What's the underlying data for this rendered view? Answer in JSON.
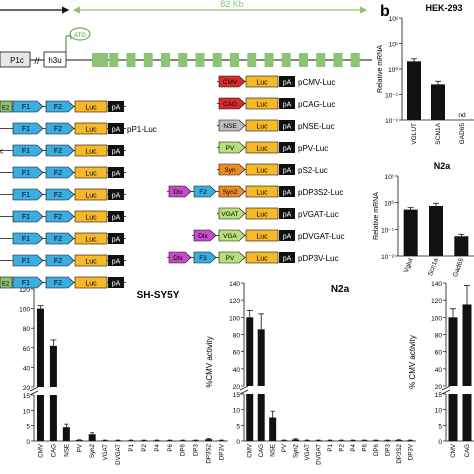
{
  "colors": {
    "green": "#8cc474",
    "green_dark": "#4e9a3a",
    "luc": "#f6b929",
    "blue": "#3aaee0",
    "red": "#d82c2c",
    "grey": "#bdbdbd",
    "lime": "#b8e07a",
    "orange": "#f08a24",
    "magenta": "#c54bc8"
  },
  "gene_map": {
    "scale_label": "82 Kb",
    "p1c_label": "P1c",
    "h3u_label": "h3u",
    "atg_label": "ATG",
    "exon_count": 16
  },
  "left_constructs": [
    {
      "tail": "E2",
      "boxes": [
        "F1",
        "F2"
      ],
      "luc": "Luc",
      "pa": "pA",
      "label": ""
    },
    {
      "tail": "",
      "boxes": [
        "F1",
        "F2"
      ],
      "luc": "Luc",
      "pa": "pA",
      "label": "pP1-Luc"
    },
    {
      "tail": "c",
      "boxes": [
        "F1",
        "F2"
      ],
      "luc": "Luc",
      "pa": "pA",
      "label": ""
    },
    {
      "tail": "",
      "boxes": [
        "F1",
        "F2"
      ],
      "luc": "Luc",
      "pa": "pA",
      "label": ""
    },
    {
      "tail": "",
      "boxes": [
        "F1",
        "F2"
      ],
      "luc": "Luc",
      "pa": "pA",
      "label": ""
    },
    {
      "tail": "",
      "boxes": [
        "F1",
        "F2"
      ],
      "luc": "Luc",
      "pa": "pA",
      "label": ""
    },
    {
      "tail": "",
      "boxes": [
        "F1",
        "F2"
      ],
      "luc": "Luc",
      "pa": "pA",
      "label": ""
    },
    {
      "tail": "",
      "boxes": [
        "F1",
        "F2"
      ],
      "luc": "Luc",
      "pa": "pA",
      "label": ""
    },
    {
      "tail": "E2",
      "boxes": [
        "F1",
        "F2"
      ],
      "luc": "Luc",
      "pa": "pA",
      "label": ""
    }
  ],
  "right_constructs": [
    {
      "promoter": "CMV",
      "color": "red",
      "extra": [],
      "label": "pCMV-Luc"
    },
    {
      "promoter": "CAG",
      "color": "red",
      "extra": [],
      "label": "pCAG-Luc"
    },
    {
      "promoter": "NSE",
      "color": "grey",
      "extra": [],
      "label": "pNSE-Luc"
    },
    {
      "promoter": "PV",
      "color": "lime",
      "extra": [],
      "label": "pPV-Luc"
    },
    {
      "promoter": "Syn",
      "color": "orange",
      "extra": [],
      "label": "pS2-Luc"
    },
    {
      "promoter": "Syn2",
      "color": "orange",
      "extra": [
        "Dlx",
        "F2"
      ],
      "label": "pDP3S2-Luc"
    },
    {
      "promoter": "VGAT",
      "color": "lime",
      "extra": [],
      "label": "pVGAT-Luc"
    },
    {
      "promoter": "VGA",
      "color": "lime",
      "extra": [
        "Dlx"
      ],
      "label": "pDVGAT-Luc"
    },
    {
      "promoter": "PV",
      "color": "lime",
      "extra": [
        "Dlx",
        "F3"
      ],
      "label": "pDP3V-Luc"
    }
  ],
  "panel_b_label": "b",
  "chart_data": [
    {
      "type": "bar",
      "title": "HEK-293",
      "ylabel": "Relative mRNA",
      "scale": "log",
      "yticks": [
        "10²",
        "10¹",
        "10⁰",
        "10⁻¹",
        "10⁻²"
      ],
      "categories": [
        "VGLUT",
        "SCN1A",
        "GAD65"
      ],
      "values": [
        2.0,
        0.25,
        null
      ],
      "errors": [
        0.5,
        0.08,
        null
      ],
      "annotations": [
        "",
        "",
        "nd"
      ]
    },
    {
      "type": "bar",
      "title": "N2a",
      "ylabel": "Relative mRNA",
      "scale": "log",
      "yticks": [
        "10¹",
        "10⁰",
        "10⁻¹",
        "10⁻²"
      ],
      "categories": [
        "Vglut",
        "Scn1a",
        "Gad65"
      ],
      "values": [
        0.55,
        0.75,
        0.055
      ],
      "errors": [
        0.1,
        0.2,
        0.01
      ]
    },
    {
      "type": "bar",
      "title": "SH-SY5Y",
      "ylabel": "",
      "yticks_upper": [
        "120",
        "100",
        "80",
        "60",
        "40",
        "20"
      ],
      "yticks_lower": [
        "15",
        "10",
        "5",
        "0"
      ],
      "categories": [
        "CMV",
        "CAG",
        "NSE",
        "PV",
        "Syn2",
        "VGAT",
        "DVGAT",
        "P1",
        "P2",
        "P4",
        "P6",
        "DP6",
        "DP3",
        "DP3S2",
        "DP3V"
      ],
      "values": [
        100,
        62,
        4.5,
        0.3,
        2.2,
        0.2,
        0.2,
        0.2,
        0.2,
        0.2,
        0.2,
        0.2,
        0.2,
        0.6,
        0.2
      ],
      "errors": [
        3,
        6,
        1,
        0.1,
        0.5,
        0.1,
        0.1,
        0.1,
        0.1,
        0.1,
        0.1,
        0.1,
        0.1,
        0.2,
        0.1
      ]
    },
    {
      "type": "bar",
      "title": "N2a",
      "ylabel": "%CMV activity",
      "yticks_upper": [
        "140",
        "120",
        "100",
        "80",
        "60",
        "40",
        "20"
      ],
      "yticks_lower": [
        "15",
        "10",
        "5",
        "0"
      ],
      "categories": [
        "CMV",
        "CAG",
        "NSE",
        "PV",
        "Syn2",
        "VGAT",
        "DVGAT",
        "P1",
        "P2",
        "P4",
        "P6",
        "DP6",
        "DP3",
        "DP3S2",
        "DP3V"
      ],
      "values": [
        100,
        86,
        7.5,
        0.2,
        0.5,
        0.2,
        0.2,
        0.2,
        0.2,
        0.2,
        0.2,
        0.2,
        0.2,
        0.3,
        0.2
      ],
      "errors": [
        8,
        18,
        2,
        0.1,
        0.2,
        0.1,
        0.1,
        0.1,
        0.1,
        0.1,
        0.1,
        0.1,
        0.1,
        0.1,
        0.1
      ]
    },
    {
      "type": "bar",
      "title": "",
      "ylabel": "% CMV activity",
      "yticks_upper": [
        "140",
        "120",
        "100",
        "80",
        "60",
        "40",
        "20"
      ],
      "yticks_lower": [
        "15",
        "10",
        "5",
        "0"
      ],
      "categories": [
        "CMV",
        "CAG"
      ],
      "values": [
        100,
        115
      ],
      "errors": [
        10,
        22
      ]
    }
  ]
}
